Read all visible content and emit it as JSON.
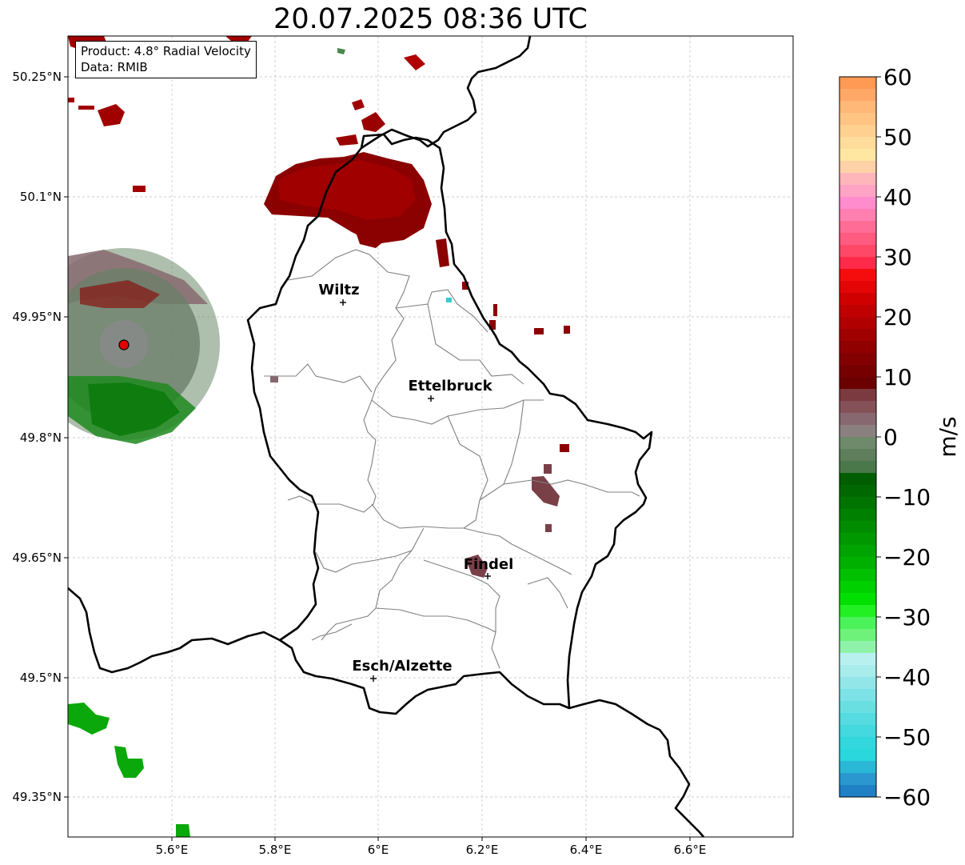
{
  "title": "20.07.2025 08:36 UTC",
  "info_box": {
    "product": "Product: 4.8° Radial Velocity",
    "data_source": "Data: RMIB"
  },
  "map": {
    "lat_ticks": [
      "50.25°N",
      "50.1°N",
      "49.95°N",
      "49.8°N",
      "49.65°N",
      "49.5°N",
      "49.35°N"
    ],
    "lon_ticks": [
      "5.6°E",
      "5.8°E",
      "6°E",
      "6.2°E",
      "6.4°E",
      "6.6°E"
    ],
    "cities": [
      "Wiltz",
      "Ettelbruck",
      "Findel",
      "Esch/Alzette"
    ],
    "radar_site_color": "#e00000",
    "border_color": "#000000",
    "district_color": "#808080",
    "gridlines": true
  },
  "colorbar": {
    "label": "m/s",
    "ticks": [
      "60",
      "50",
      "40",
      "30",
      "20",
      "10",
      "0",
      "−10",
      "−20",
      "−30",
      "−40",
      "−50",
      "−60"
    ],
    "range": [
      -60,
      60
    ]
  }
}
